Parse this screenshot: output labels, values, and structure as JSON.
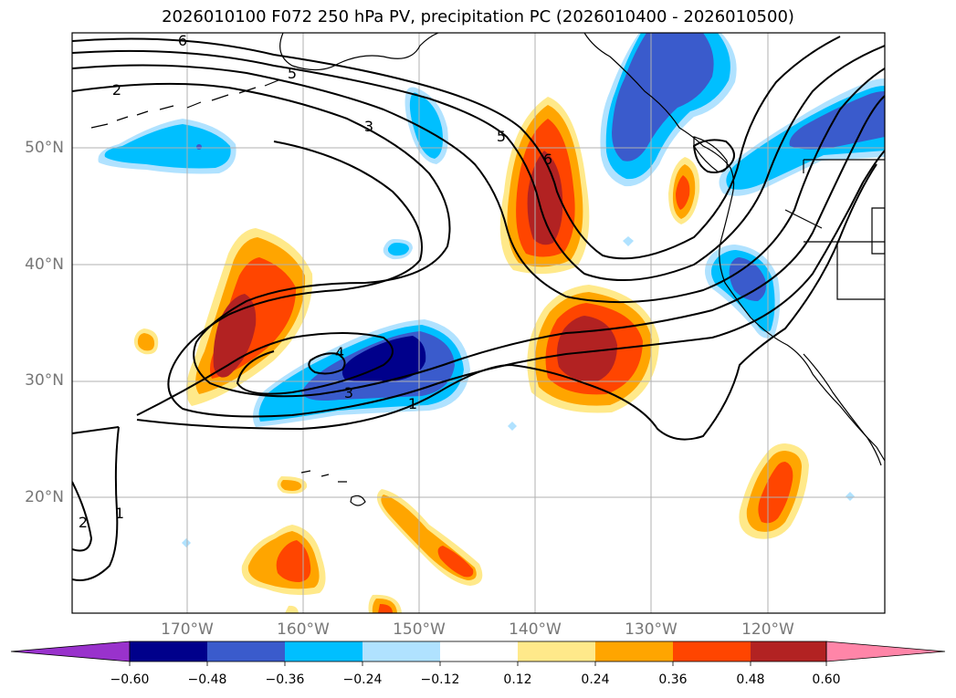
{
  "title": "2026010100 F072 250 hPa PV, precipitation PC (2026010400 - 2026010500)",
  "lat_labels": [
    "50°N",
    "40°N",
    "30°N",
    "20°N"
  ],
  "lon_labels": [
    "170°W",
    "160°W",
    "150°W",
    "140°W",
    "130°W",
    "120°W"
  ],
  "contour_labels": [
    "6",
    "5",
    "2",
    "3",
    "5",
    "6",
    "4",
    "3",
    "1",
    "2",
    "1"
  ],
  "colorbar": {
    "ticks": [
      "−0.60",
      "−0.48",
      "−0.36",
      "−0.24",
      "−0.12",
      "0.12",
      "0.24",
      "0.36",
      "0.48",
      "0.60"
    ],
    "colors": [
      "#9932cc",
      "#00008b",
      "#3a5bcc",
      "#00bfff",
      "#b0e2ff",
      "#ffffff",
      "#ffe98a",
      "#ffa500",
      "#ff4500",
      "#b22222",
      "#ff85a8"
    ]
  },
  "colors": {
    "pos1": "#ffe98a",
    "pos2": "#ffa500",
    "pos3": "#ff4500",
    "pos4": "#b22222",
    "neg1": "#b0e2ff",
    "neg2": "#00bfff",
    "neg3": "#3a5bcc",
    "neg4": "#00008b",
    "gridline": "#b0b0b0"
  }
}
